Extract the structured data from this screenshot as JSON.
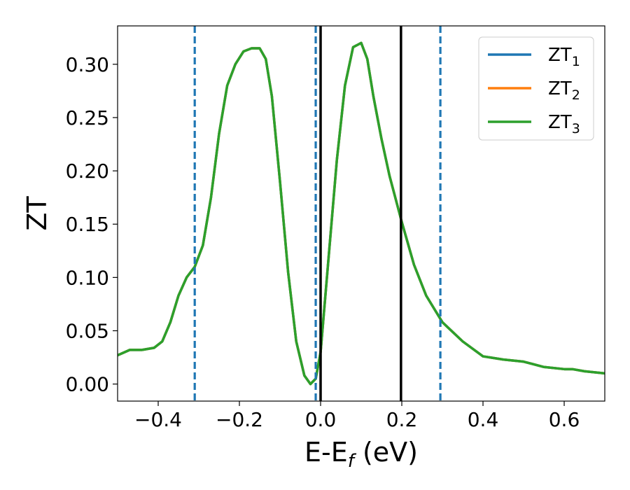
{
  "chart_data": {
    "type": "line",
    "title": "",
    "xlabel": {
      "base": "E-E",
      "sub": "f",
      "suffix": " (eV)"
    },
    "ylabel": "ZT",
    "xlim": [
      -0.5,
      0.7
    ],
    "ylim": [
      -0.016,
      0.336
    ],
    "xticks": [
      -0.4,
      -0.2,
      0.0,
      0.2,
      0.4,
      0.6
    ],
    "xtick_labels": [
      "−0.4",
      "−0.2",
      "0.0",
      "0.2",
      "0.4",
      "0.6"
    ],
    "yticks": [
      0.0,
      0.05,
      0.1,
      0.15,
      0.2,
      0.25,
      0.3
    ],
    "ytick_labels": [
      "0.00",
      "0.05",
      "0.10",
      "0.15",
      "0.20",
      "0.25",
      "0.30"
    ],
    "grid": false,
    "legend_position": "top-right",
    "vlines": [
      {
        "x": -0.31,
        "style": "dashed",
        "color": "#1f77b4"
      },
      {
        "x": -0.012,
        "style": "dashed",
        "color": "#1f77b4"
      },
      {
        "x": 0.0,
        "style": "solid",
        "color": "#000000"
      },
      {
        "x": 0.198,
        "style": "solid",
        "color": "#000000"
      },
      {
        "x": 0.295,
        "style": "dashed",
        "color": "#1f77b4"
      }
    ],
    "x": [
      -0.5,
      -0.47,
      -0.44,
      -0.41,
      -0.39,
      -0.37,
      -0.35,
      -0.33,
      -0.31,
      -0.29,
      -0.27,
      -0.25,
      -0.23,
      -0.21,
      -0.19,
      -0.17,
      -0.15,
      -0.135,
      -0.12,
      -0.1,
      -0.08,
      -0.06,
      -0.04,
      -0.025,
      -0.012,
      0.0,
      0.02,
      0.04,
      0.06,
      0.08,
      0.1,
      0.115,
      0.13,
      0.15,
      0.17,
      0.2,
      0.23,
      0.26,
      0.3,
      0.35,
      0.4,
      0.45,
      0.5,
      0.55,
      0.6,
      0.62,
      0.65,
      0.7
    ],
    "series": [
      {
        "name": "ZT",
        "sub": "1",
        "color": "#1f77b4",
        "values": [
          0.027,
          0.032,
          0.032,
          0.034,
          0.04,
          0.058,
          0.083,
          0.1,
          0.11,
          0.13,
          0.175,
          0.235,
          0.28,
          0.3,
          0.312,
          0.315,
          0.315,
          0.305,
          0.27,
          0.19,
          0.105,
          0.04,
          0.008,
          0.0,
          0.005,
          0.03,
          0.12,
          0.21,
          0.28,
          0.316,
          0.32,
          0.305,
          0.27,
          0.23,
          0.195,
          0.152,
          0.112,
          0.083,
          0.058,
          0.04,
          0.026,
          0.023,
          0.021,
          0.016,
          0.014,
          0.014,
          0.012,
          0.01
        ]
      },
      {
        "name": "ZT",
        "sub": "2",
        "color": "#ff7f0e",
        "values": [
          0.027,
          0.032,
          0.032,
          0.034,
          0.04,
          0.058,
          0.083,
          0.1,
          0.11,
          0.13,
          0.175,
          0.235,
          0.28,
          0.3,
          0.312,
          0.315,
          0.315,
          0.305,
          0.27,
          0.19,
          0.105,
          0.04,
          0.008,
          0.0,
          0.005,
          0.03,
          0.12,
          0.21,
          0.28,
          0.316,
          0.32,
          0.305,
          0.27,
          0.23,
          0.195,
          0.152,
          0.112,
          0.083,
          0.058,
          0.04,
          0.026,
          0.023,
          0.021,
          0.016,
          0.014,
          0.014,
          0.012,
          0.01
        ]
      },
      {
        "name": "ZT",
        "sub": "3",
        "color": "#2ca02c",
        "values": [
          0.027,
          0.032,
          0.032,
          0.034,
          0.04,
          0.058,
          0.083,
          0.1,
          0.11,
          0.13,
          0.175,
          0.235,
          0.28,
          0.3,
          0.312,
          0.315,
          0.315,
          0.305,
          0.27,
          0.19,
          0.105,
          0.04,
          0.008,
          0.0,
          0.005,
          0.03,
          0.12,
          0.21,
          0.28,
          0.316,
          0.32,
          0.305,
          0.27,
          0.23,
          0.195,
          0.152,
          0.112,
          0.083,
          0.058,
          0.04,
          0.026,
          0.023,
          0.021,
          0.016,
          0.014,
          0.014,
          0.012,
          0.01
        ]
      }
    ]
  }
}
